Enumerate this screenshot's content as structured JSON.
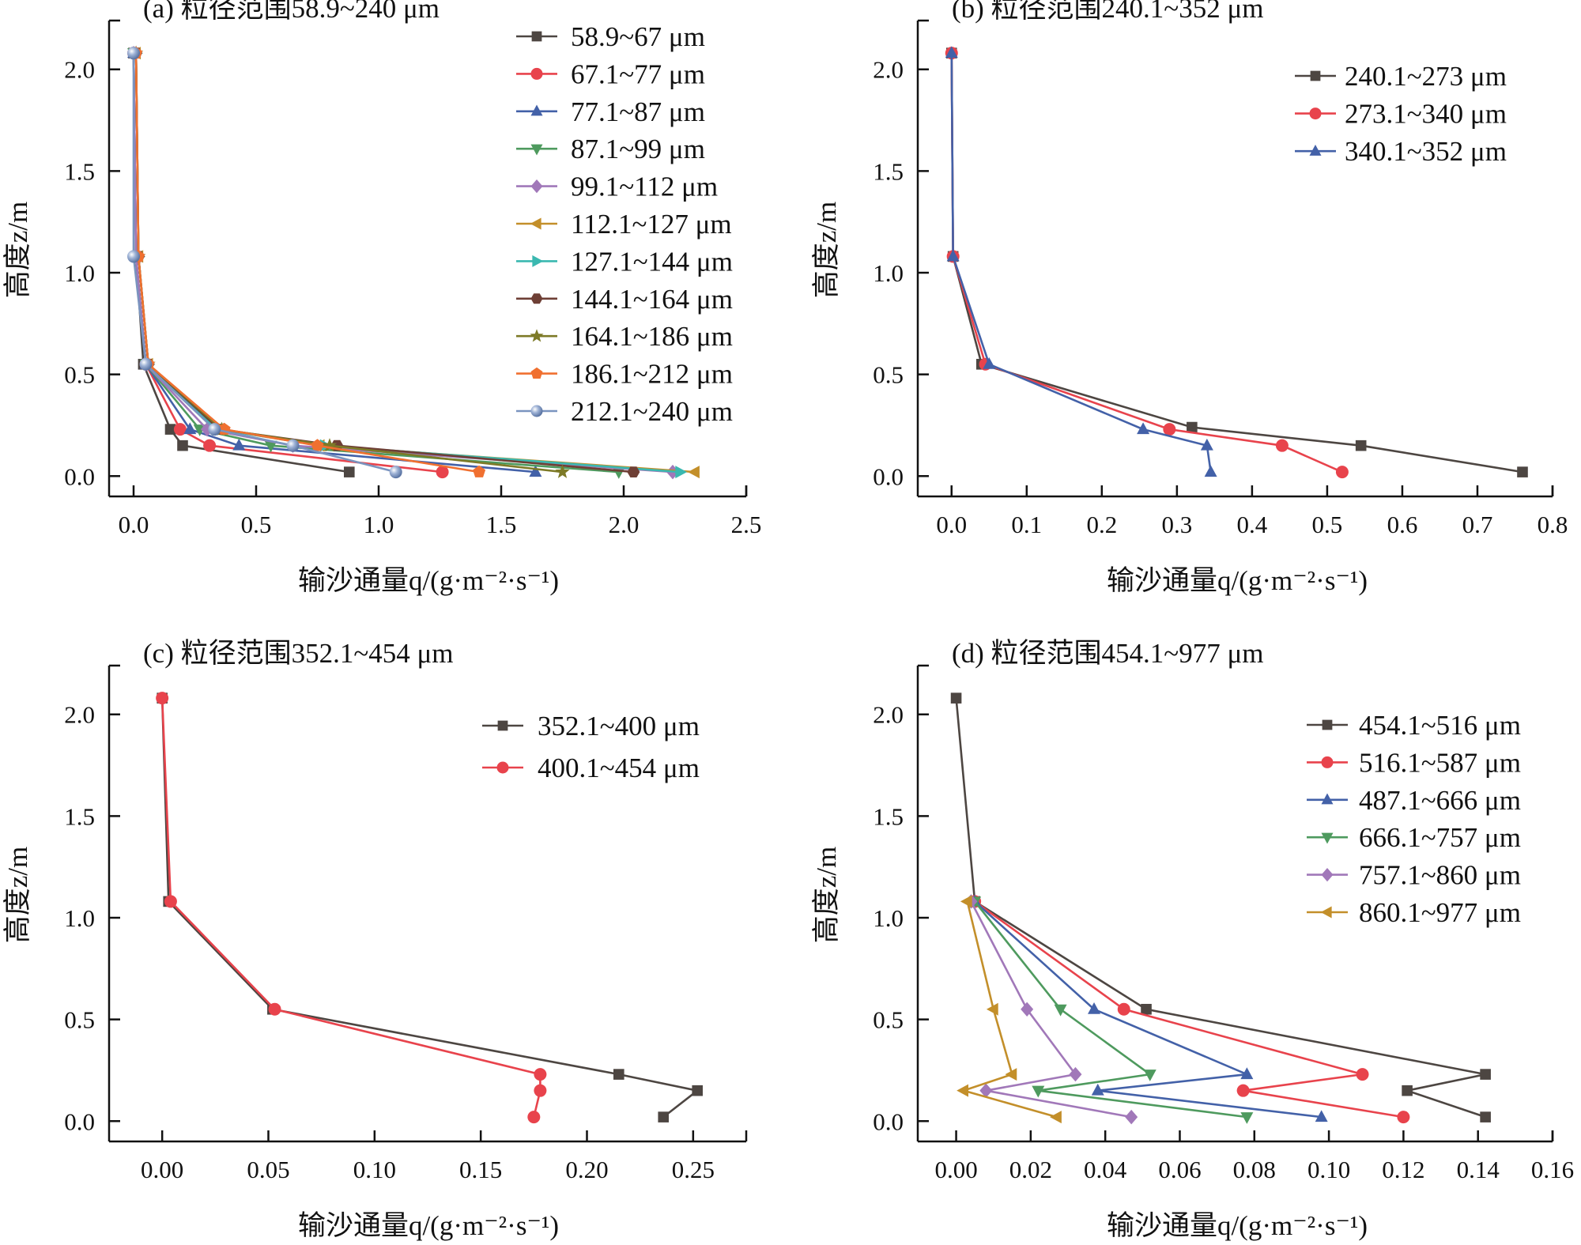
{
  "chart_data": [
    {
      "type": "line",
      "title": "(a) 粒径范围58.9~240 μm",
      "xlabel": "输沙通量q/(g·m⁻²·s⁻¹)",
      "ylabel": "高度z/m",
      "xlim": [
        -0.1,
        2.5
      ],
      "ylim": [
        -0.1,
        2.24
      ],
      "xticks": [
        0.0,
        0.5,
        1.0,
        1.5,
        2.0,
        2.5
      ],
      "xtick_labels": [
        "0.0",
        "0.5",
        "1.0",
        "1.5",
        "2.0",
        "2.5"
      ],
      "yticks": [
        0.0,
        0.5,
        1.0,
        1.5,
        2.0
      ],
      "ytick_labels": [
        "0.0",
        "0.5",
        "1.0",
        "1.5",
        "2.0"
      ],
      "legend": "top-right",
      "series": [
        {
          "name": "58.9~67 μm",
          "color": "#4d4642",
          "marker": "square",
          "z": [
            2.08,
            1.08,
            0.55,
            0.23,
            0.15,
            0.02
          ],
          "x": [
            0.0,
            0.01,
            0.04,
            0.15,
            0.2,
            0.88
          ]
        },
        {
          "name": "67.1~77 μm",
          "color": "#e8434c",
          "marker": "circle",
          "z": [
            2.08,
            1.08,
            0.55,
            0.23,
            0.15,
            0.02
          ],
          "x": [
            0.0,
            0.01,
            0.05,
            0.19,
            0.31,
            1.26
          ]
        },
        {
          "name": "77.1~87 μm",
          "color": "#4361a8",
          "marker": "triangle-up",
          "z": [
            2.08,
            1.08,
            0.55,
            0.23,
            0.15,
            0.02
          ],
          "x": [
            0.0,
            0.01,
            0.05,
            0.23,
            0.43,
            1.64
          ]
        },
        {
          "name": "87.1~99 μm",
          "color": "#4e9a5e",
          "marker": "triangle-down",
          "z": [
            2.08,
            1.08,
            0.55,
            0.23,
            0.15,
            0.02
          ],
          "x": [
            0.0,
            0.01,
            0.05,
            0.27,
            0.56,
            1.98
          ]
        },
        {
          "name": "99.1~112 μm",
          "color": "#a178b9",
          "marker": "diamond",
          "z": [
            2.08,
            1.08,
            0.55,
            0.23,
            0.15,
            0.02
          ],
          "x": [
            0.0,
            0.01,
            0.05,
            0.3,
            0.65,
            2.2
          ]
        },
        {
          "name": "112.1~127 μm",
          "color": "#c38f2a",
          "marker": "triangle-left",
          "z": [
            2.08,
            1.08,
            0.55,
            0.23,
            0.15,
            0.02
          ],
          "x": [
            0.01,
            0.02,
            0.06,
            0.35,
            0.76,
            2.29
          ]
        },
        {
          "name": "127.1~144 μm",
          "color": "#3ab8b0",
          "marker": "triangle-right",
          "z": [
            2.08,
            1.08,
            0.55,
            0.23,
            0.15,
            0.02
          ],
          "x": [
            0.01,
            0.02,
            0.06,
            0.34,
            0.78,
            2.23
          ]
        },
        {
          "name": "144.1~164 μm",
          "color": "#6e3f35",
          "marker": "hexagon",
          "z": [
            2.08,
            1.08,
            0.55,
            0.23,
            0.15,
            0.02
          ],
          "x": [
            0.01,
            0.02,
            0.06,
            0.35,
            0.83,
            2.04
          ]
        },
        {
          "name": "164.1~186 μm",
          "color": "#7d7a27",
          "marker": "star",
          "z": [
            2.08,
            1.08,
            0.55,
            0.23,
            0.15,
            0.02
          ],
          "x": [
            0.01,
            0.02,
            0.06,
            0.36,
            0.8,
            1.75
          ]
        },
        {
          "name": "186.1~212 μm",
          "color": "#f07030",
          "marker": "pentagon",
          "z": [
            2.08,
            1.08,
            0.55,
            0.23,
            0.15,
            0.02
          ],
          "x": [
            0.01,
            0.02,
            0.06,
            0.37,
            0.75,
            1.41
          ]
        },
        {
          "name": "212.1~240 μm",
          "color": "#7a94bf",
          "marker": "sphere",
          "z": [
            2.08,
            1.08,
            0.55,
            0.23,
            0.15,
            0.02
          ],
          "x": [
            0.0,
            0.0,
            0.05,
            0.33,
            0.65,
            1.07
          ]
        }
      ]
    },
    {
      "type": "line",
      "title": "(b) 粒径范围240.1~352 μm",
      "xlabel": "输沙通量q/(g·m⁻²·s⁻¹)",
      "ylabel": "高度z/m",
      "xlim": [
        -0.045,
        0.8
      ],
      "ylim": [
        -0.1,
        2.24
      ],
      "xticks": [
        0.0,
        0.1,
        0.2,
        0.3,
        0.4,
        0.5,
        0.6,
        0.7,
        0.8
      ],
      "xtick_labels": [
        "0.0",
        "0.1",
        "0.2",
        "0.3",
        "0.4",
        "0.5",
        "0.6",
        "0.7",
        "0.8"
      ],
      "yticks": [
        0.0,
        0.5,
        1.0,
        1.5,
        2.0
      ],
      "ytick_labels": [
        "0.0",
        "0.5",
        "1.0",
        "1.5",
        "2.0"
      ],
      "legend": "top-right",
      "series": [
        {
          "name": "240.1~273 μm",
          "color": "#4d4642",
          "marker": "square",
          "z": [
            2.08,
            1.08,
            0.55,
            0.24,
            0.15,
            0.02
          ],
          "x": [
            0.0,
            0.002,
            0.04,
            0.32,
            0.545,
            0.76
          ]
        },
        {
          "name": "273.1~340 μm",
          "color": "#e8434c",
          "marker": "circle",
          "z": [
            2.08,
            1.08,
            0.55,
            0.23,
            0.15,
            0.02
          ],
          "x": [
            0.0,
            0.002,
            0.045,
            0.29,
            0.44,
            0.52
          ]
        },
        {
          "name": "340.1~352 μm",
          "color": "#4361a8",
          "marker": "triangle-up",
          "z": [
            2.08,
            1.08,
            0.55,
            0.23,
            0.15,
            0.02
          ],
          "x": [
            0.0,
            0.002,
            0.05,
            0.255,
            0.34,
            0.345
          ]
        }
      ]
    },
    {
      "type": "line",
      "title": "(c) 粒径范围352.1~454 μm",
      "xlabel": "输沙通量q/(g·m⁻²·s⁻¹)",
      "ylabel": "高度z/m",
      "xlim": [
        -0.025,
        0.275
      ],
      "ylim": [
        -0.1,
        2.24
      ],
      "xticks": [
        0.0,
        0.05,
        0.1,
        0.15,
        0.2,
        0.25
      ],
      "xtick_labels": [
        "0.00",
        "0.05",
        "0.10",
        "0.15",
        "0.20",
        "0.25"
      ],
      "yticks": [
        0.0,
        0.5,
        1.0,
        1.5,
        2.0
      ],
      "ytick_labels": [
        "0.0",
        "0.5",
        "1.0",
        "1.5",
        "2.0"
      ],
      "legend": "top-right",
      "series": [
        {
          "name": "352.1~400 μm",
          "color": "#4d4642",
          "marker": "square",
          "z": [
            2.08,
            1.08,
            0.55,
            0.23,
            0.15,
            0.02
          ],
          "x": [
            0.0,
            0.003,
            0.052,
            0.215,
            0.252,
            0.236
          ]
        },
        {
          "name": "400.1~454 μm",
          "color": "#e8434c",
          "marker": "circle",
          "z": [
            2.08,
            1.08,
            0.55,
            0.23,
            0.15,
            0.02
          ],
          "x": [
            0.0,
            0.004,
            0.053,
            0.178,
            0.178,
            0.175
          ]
        }
      ]
    },
    {
      "type": "line",
      "title": "(d) 粒径范围454.1~977 μm",
      "xlabel": "输沙通量q/(g·m⁻²·s⁻¹)",
      "ylabel": "高度z/m",
      "xlim": [
        -0.0103,
        0.16
      ],
      "ylim": [
        -0.1,
        2.24
      ],
      "xticks": [
        0.0,
        0.02,
        0.04,
        0.06,
        0.08,
        0.1,
        0.12,
        0.14,
        0.16
      ],
      "xtick_labels": [
        "0.00",
        "0.02",
        "0.04",
        "0.06",
        "0.08",
        "0.10",
        "0.12",
        "0.14",
        "0.16"
      ],
      "yticks": [
        0.0,
        0.5,
        1.0,
        1.5,
        2.0
      ],
      "ytick_labels": [
        "0.0",
        "0.5",
        "1.0",
        "1.5",
        "2.0"
      ],
      "legend": "top-right",
      "series": [
        {
          "name": "454.1~516 μm",
          "color": "#4d4642",
          "marker": "square",
          "z": [
            2.08,
            1.08,
            0.55,
            0.23,
            0.15,
            0.02
          ],
          "x": [
            0.0,
            0.005,
            0.051,
            0.142,
            0.121,
            0.142
          ]
        },
        {
          "name": "516.1~587 μm",
          "color": "#e8434c",
          "marker": "circle",
          "z": [
            1.08,
            0.55,
            0.23,
            0.15,
            0.02
          ],
          "x": [
            0.005,
            0.045,
            0.109,
            0.077,
            0.12
          ]
        },
        {
          "name": "487.1~666 μm",
          "color": "#4361a8",
          "marker": "triangle-up",
          "z": [
            1.08,
            0.55,
            0.23,
            0.15,
            0.02
          ],
          "x": [
            0.005,
            0.037,
            0.078,
            0.038,
            0.098
          ]
        },
        {
          "name": "666.1~757 μm",
          "color": "#4e9a5e",
          "marker": "triangle-down",
          "z": [
            1.08,
            0.55,
            0.23,
            0.15,
            0.02
          ],
          "x": [
            0.005,
            0.028,
            0.052,
            0.022,
            0.078
          ]
        },
        {
          "name": "757.1~860 μm",
          "color": "#a178b9",
          "marker": "diamond",
          "z": [
            1.08,
            0.55,
            0.23,
            0.15,
            0.02
          ],
          "x": [
            0.004,
            0.019,
            0.032,
            0.008,
            0.047
          ]
        },
        {
          "name": "860.1~977 μm",
          "color": "#c38f2a",
          "marker": "triangle-left",
          "z": [
            1.08,
            0.55,
            0.23,
            0.15,
            0.02
          ],
          "x": [
            0.003,
            0.01,
            0.015,
            0.002,
            0.027
          ]
        }
      ]
    }
  ]
}
